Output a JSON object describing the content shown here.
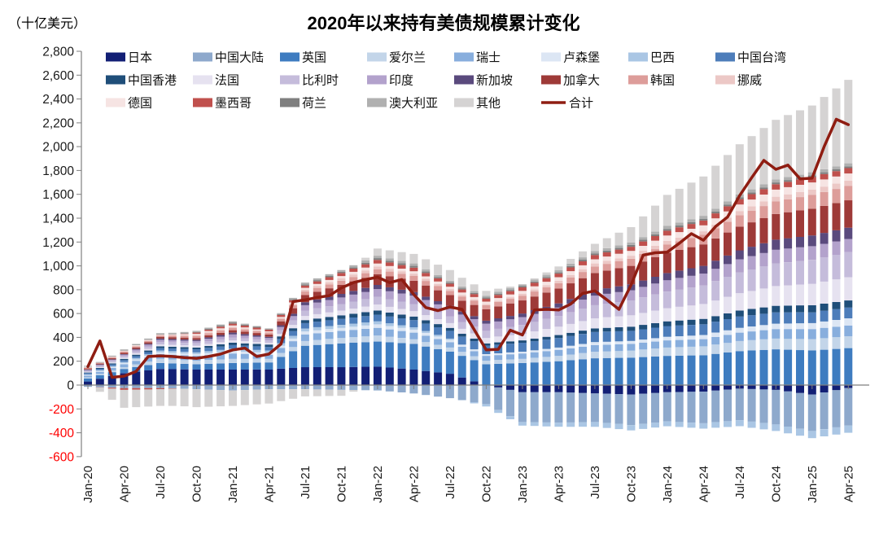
{
  "header": {
    "title": "2020年以来持有美债规模累计变化",
    "unit_label": "（十亿美元）"
  },
  "legend": {
    "rows": [
      [
        "日本",
        "中国大陆",
        "英国",
        "爱尔兰",
        "瑞士",
        "卢森堡",
        "巴西",
        "中国台湾"
      ],
      [
        "中国香港",
        "法国",
        "比利时",
        "印度",
        "新加坡",
        "加拿大",
        "韩国",
        "挪威"
      ],
      [
        "德国",
        "墨西哥",
        "荷兰",
        "澳大利亚",
        "其他",
        "合计"
      ]
    ]
  },
  "chart_data": {
    "type": "bar",
    "subtype": "stacked-monthly-bars-with-total-line",
    "title": "2020年以来持有美债规模累计变化",
    "ylabel": "（十亿美元）",
    "ylim": [
      -600,
      2800
    ],
    "y_tick_step": 200,
    "negative_tick_color": "#ff0000",
    "positive_tick_color": "#1a1a1a",
    "axis_color": "#7f7f7f",
    "grid": "off",
    "legend_position": "top-inside",
    "n_months": 64,
    "months_per_tick": 3,
    "x_tick_labels": [
      "Jan-20",
      "Apr-20",
      "Jul-20",
      "Oct-20",
      "Jan-21",
      "Apr-21",
      "Jul-21",
      "Oct-21",
      "Jan-22",
      "Apr-22",
      "Jul-22",
      "Oct-22",
      "Jan-23",
      "Apr-23",
      "Jul-23",
      "Oct-23",
      "Jan-24",
      "Apr-24",
      "Jul-24",
      "Oct-24",
      "Jan-25",
      "Apr-25"
    ],
    "values_note": "series values are estimated billions USD at the labeled quarterly ticks; bars between ticks are linearly interpolated",
    "series": [
      {
        "name": "日本",
        "color": "#121f75",
        "values": [
          30,
          100,
          135,
          130,
          130,
          130,
          150,
          150,
          155,
          130,
          95,
          0,
          -60,
          -60,
          -70,
          -80,
          -60,
          -55,
          -30,
          -40,
          -80,
          -25
        ]
      },
      {
        "name": "中国大陆",
        "color": "#8ea9cc",
        "values": [
          -15,
          -25,
          -25,
          -35,
          -45,
          -35,
          -35,
          -40,
          -45,
          -70,
          -110,
          -160,
          -250,
          -255,
          -240,
          -255,
          -245,
          -265,
          -265,
          -290,
          -305,
          -315
        ]
      },
      {
        "name": "英国",
        "color": "#3e7cc0",
        "values": [
          25,
          35,
          50,
          45,
          55,
          60,
          180,
          200,
          210,
          215,
          185,
          175,
          185,
          200,
          225,
          230,
          245,
          250,
          285,
          300,
          290,
          310
        ]
      },
      {
        "name": "爱尔兰",
        "color": "#c3d5e9",
        "values": [
          10,
          15,
          35,
          30,
          35,
          30,
          40,
          45,
          50,
          40,
          35,
          30,
          35,
          45,
          55,
          60,
          70,
          75,
          85,
          90,
          95,
          100
        ]
      },
      {
        "name": "瑞士",
        "color": "#88aedd",
        "values": [
          15,
          25,
          40,
          40,
          45,
          35,
          55,
          60,
          65,
          55,
          45,
          40,
          45,
          50,
          55,
          55,
          60,
          60,
          70,
          80,
          85,
          90
        ]
      },
      {
        "name": "卢森堡",
        "color": "#dce6f4",
        "values": [
          5,
          10,
          15,
          15,
          20,
          15,
          25,
          25,
          30,
          25,
          20,
          15,
          15,
          20,
          25,
          25,
          30,
          35,
          40,
          45,
          50,
          60
        ]
      },
      {
        "name": "巴西",
        "color": "#aac6e4",
        "values": [
          5,
          10,
          15,
          15,
          20,
          20,
          25,
          25,
          25,
          20,
          10,
          -20,
          -30,
          -35,
          -40,
          -45,
          -40,
          -45,
          -50,
          -55,
          -60,
          -60
        ]
      },
      {
        "name": "中国台湾",
        "color": "#4d7dba",
        "values": [
          10,
          15,
          20,
          25,
          30,
          30,
          45,
          50,
          55,
          60,
          65,
          70,
          75,
          80,
          85,
          85,
          90,
          90,
          95,
          95,
          90,
          90
        ]
      },
      {
        "name": "中国香港",
        "color": "#1f4e79",
        "values": [
          5,
          10,
          15,
          15,
          20,
          20,
          25,
          30,
          35,
          30,
          25,
          20,
          20,
          25,
          30,
          35,
          40,
          45,
          50,
          55,
          60,
          60
        ]
      },
      {
        "name": "法国",
        "color": "#e6e2f0",
        "values": [
          5,
          10,
          15,
          15,
          20,
          15,
          35,
          40,
          50,
          45,
          40,
          45,
          55,
          70,
          85,
          95,
          110,
          125,
          145,
          165,
          180,
          195
        ]
      },
      {
        "name": "比利时",
        "color": "#c5bcdb",
        "values": [
          10,
          15,
          20,
          20,
          25,
          20,
          45,
          55,
          65,
          60,
          55,
          60,
          75,
          90,
          110,
          125,
          140,
          155,
          175,
          190,
          200,
          210
        ]
      },
      {
        "name": "印度",
        "color": "#b3a2cc",
        "values": [
          5,
          10,
          20,
          20,
          25,
          20,
          45,
          55,
          65,
          70,
          65,
          60,
          65,
          70,
          80,
          85,
          95,
          100,
          110,
          115,
          115,
          110
        ]
      },
      {
        "name": "新加坡",
        "color": "#5a4a7d",
        "values": [
          5,
          5,
          10,
          10,
          15,
          10,
          25,
          30,
          35,
          30,
          25,
          25,
          30,
          35,
          45,
          50,
          60,
          65,
          75,
          85,
          90,
          95
        ]
      },
      {
        "name": "加拿大",
        "color": "#9e3a38",
        "values": [
          5,
          10,
          15,
          15,
          20,
          20,
          60,
          75,
          90,
          95,
          90,
          95,
          110,
          125,
          145,
          155,
          170,
          180,
          200,
          215,
          225,
          230
        ]
      },
      {
        "name": "韩国",
        "color": "#dd9d9a",
        "values": [
          5,
          10,
          10,
          15,
          20,
          15,
          30,
          35,
          40,
          40,
          35,
          35,
          40,
          45,
          55,
          60,
          70,
          80,
          95,
          105,
          115,
          120
        ]
      },
      {
        "name": "挪威",
        "color": "#ecc8c6",
        "values": [
          0,
          5,
          5,
          10,
          10,
          5,
          15,
          20,
          25,
          20,
          15,
          10,
          15,
          20,
          25,
          25,
          30,
          30,
          35,
          40,
          45,
          45
        ]
      },
      {
        "name": "德国",
        "color": "#f6e4e3",
        "values": [
          0,
          5,
          5,
          10,
          10,
          5,
          15,
          20,
          25,
          20,
          20,
          20,
          25,
          30,
          35,
          40,
          45,
          50,
          55,
          60,
          60,
          60
        ]
      },
      {
        "name": "墨西哥",
        "color": "#c0504d",
        "values": [
          5,
          -15,
          -10,
          10,
          15,
          15,
          20,
          25,
          30,
          30,
          25,
          25,
          30,
          30,
          35,
          35,
          40,
          40,
          45,
          45,
          45,
          45
        ]
      },
      {
        "name": "荷兰",
        "color": "#7f7f7f",
        "values": [
          0,
          5,
          5,
          5,
          10,
          5,
          10,
          10,
          15,
          15,
          10,
          10,
          10,
          10,
          15,
          15,
          15,
          15,
          15,
          15,
          15,
          15
        ]
      },
      {
        "name": "澳大利亚",
        "color": "#b0b0b0",
        "values": [
          0,
          5,
          5,
          10,
          10,
          5,
          15,
          15,
          20,
          20,
          15,
          15,
          15,
          20,
          20,
          20,
          25,
          25,
          25,
          25,
          25,
          25
        ]
      },
      {
        "name": "其他",
        "color": "#d5d3d3",
        "values": [
          20,
          -150,
          -140,
          -150,
          -130,
          -120,
          -60,
          -50,
          60,
          80,
          90,
          40,
          0,
          30,
          60,
          130,
          260,
          330,
          420,
          500,
          560,
          700
        ]
      }
    ],
    "total_line": {
      "name": "合计",
      "color": "#8f1d12",
      "monthly_values": [
        155,
        370,
        65,
        75,
        115,
        240,
        245,
        240,
        230,
        225,
        240,
        260,
        295,
        310,
        240,
        260,
        345,
        700,
        715,
        735,
        750,
        815,
        860,
        885,
        905,
        860,
        885,
        760,
        650,
        625,
        655,
        635,
        465,
        295,
        300,
        460,
        420,
        630,
        635,
        630,
        680,
        770,
        790,
        715,
        635,
        840,
        1090,
        1110,
        1115,
        1190,
        1270,
        1215,
        1330,
        1410,
        1590,
        1740,
        1885,
        1810,
        1845,
        1730,
        1735,
        2000,
        2230,
        2185
      ]
    }
  }
}
